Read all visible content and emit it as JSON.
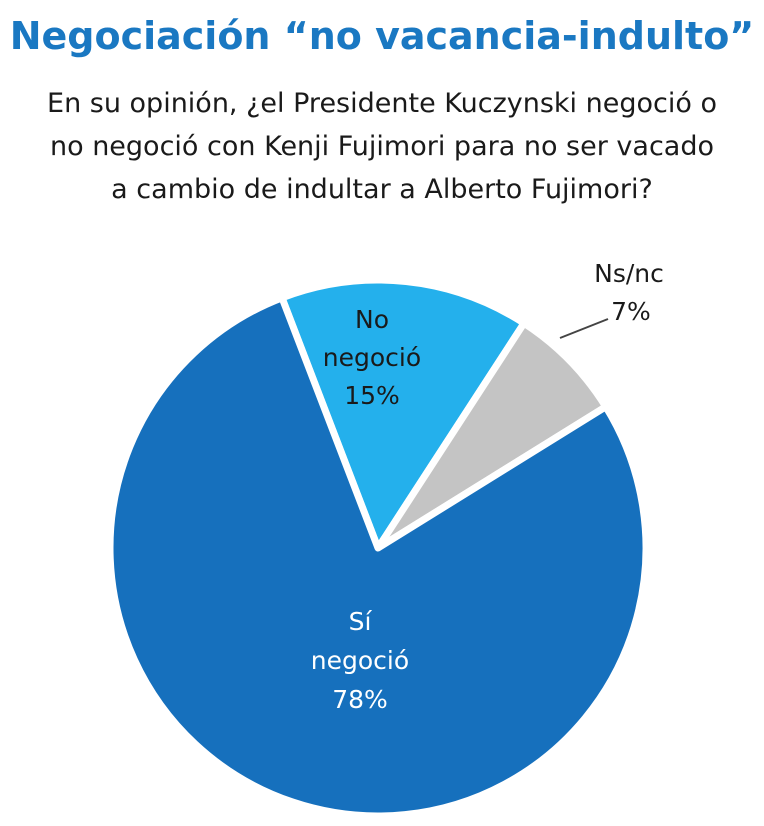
{
  "chart_data": {
    "type": "pie",
    "title": "Negociación “no vacancia-indulto”",
    "subtitle": "En su opinión, ¿el Presidente Kuczynski negoció o no negoció con Kenji Fujimori para no ser vacado a cambio de indultar a Alberto Fujimori?",
    "slices": [
      {
        "label_line1": "No",
        "label_line2": "negoció",
        "value": 15,
        "value_label": "15%",
        "color": "#24b0ec",
        "text_color": "#1a1a1a"
      },
      {
        "label_line1": "Ns/nc",
        "label_line2": "",
        "value": 7,
        "value_label": "7%",
        "color": "#c4c4c4",
        "text_color": "#1a1a1a"
      },
      {
        "label_line1": "Sí",
        "label_line2": "negoció",
        "value": 78,
        "value_label": "78%",
        "color": "#1670bd",
        "text_color": "#ffffff"
      }
    ]
  }
}
